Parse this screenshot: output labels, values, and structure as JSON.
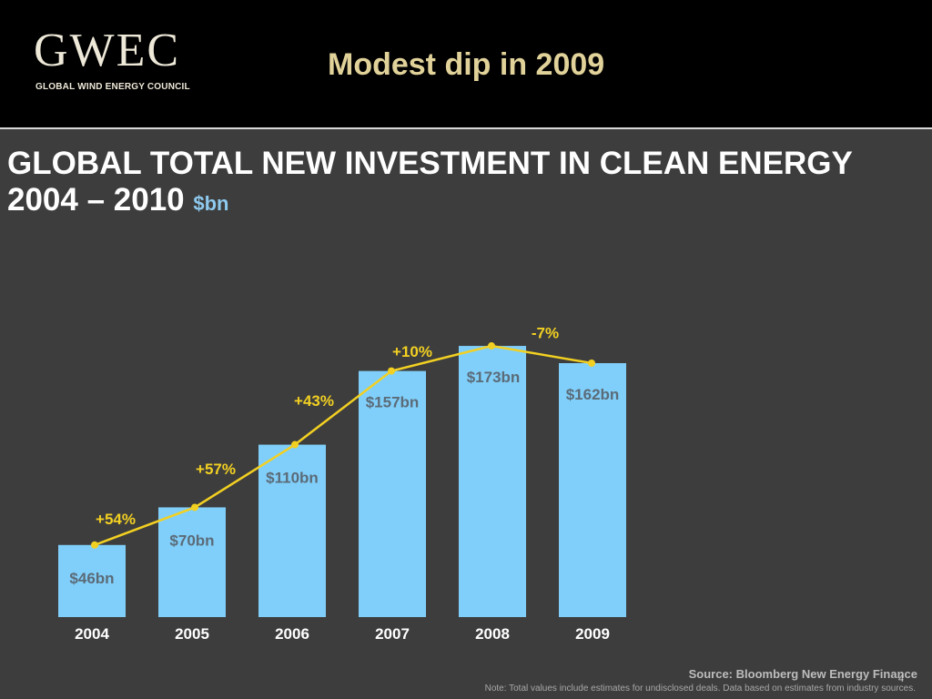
{
  "header": {
    "logo_word": "GWEC",
    "logo_subtitle": "GLOBAL WIND ENERGY COUNCIL",
    "slide_title": "Modest dip in 2009"
  },
  "chart_title": {
    "line1": "GLOBAL TOTAL NEW INVESTMENT IN CLEAN ENERGY",
    "line2": "2004 – 2010",
    "unit": "$bn"
  },
  "chart_data": {
    "type": "bar",
    "categories": [
      "2004",
      "2005",
      "2006",
      "2007",
      "2008",
      "2009"
    ],
    "values": [
      46,
      70,
      110,
      157,
      173,
      162
    ],
    "value_labels": [
      "$46bn",
      "$70bn",
      "$110bn",
      "$157bn",
      "$173bn",
      "$162bn"
    ],
    "growth_labels": [
      "+54%",
      "+57%",
      "+43%",
      "+10%",
      "-7%"
    ],
    "trend_line": true,
    "title": "GLOBAL TOTAL NEW INVESTMENT IN CLEAN ENERGY 2004 – 2010",
    "unit": "$bn",
    "ylim": [
      0,
      180
    ],
    "grid": false,
    "colors": {
      "bar": "#80cffa",
      "line": "#f2d022",
      "growth_label": "#f2d022",
      "value_label": "#5b6b78"
    }
  },
  "footer": {
    "source": "Source: Bloomberg New Energy Finance",
    "note": "Note: Total values include estimates for undisclosed deals. Data based on estimates from industry sources.",
    "page_number": "4"
  }
}
